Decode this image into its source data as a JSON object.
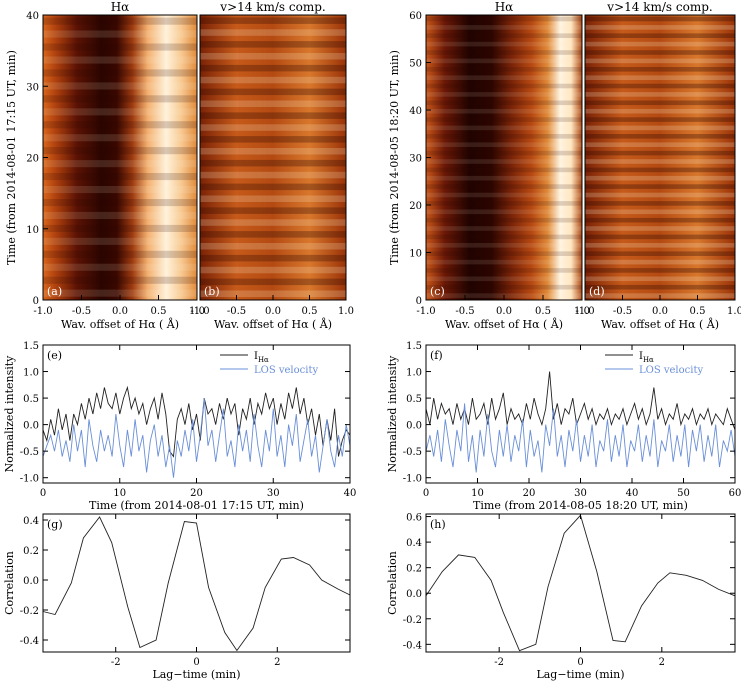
{
  "colors": {
    "axis": "#000000",
    "intensity_line": "#222222",
    "velocity_line": "#6a8fd8",
    "map_dark": "#1a0400",
    "map_mid": "#b54a12",
    "map_light": "#fff6e8"
  },
  "panels_a_to_d": [
    {
      "id": "a",
      "label": "(a)",
      "title": "Hα",
      "xlabel": "Wav. offset of Hα ( Å)",
      "ylabel": "Time (from 2014-08-01 17:15 UT, min)",
      "xticks": [
        "-1.0",
        "-0.5",
        "0.0",
        "0.5",
        "1.0"
      ],
      "yticks": [
        "0",
        "10",
        "20",
        "30",
        "40"
      ],
      "type": "spectral-time map"
    },
    {
      "id": "b",
      "label": "(b)",
      "title": "v>14 km/s comp.",
      "xlabel": "Wav. offset of Hα ( Å)",
      "xticks": [
        "-1.0",
        "-0.5",
        "0.0",
        "0.5",
        "1.0"
      ],
      "type": "spectral-time map"
    },
    {
      "id": "c",
      "label": "(c)",
      "title": "Hα",
      "xlabel": "Wav. offset of Hα ( Å)",
      "ylabel": "Time (from 2014-08-05 18:20 UT, min)",
      "xticks": [
        "-1.0",
        "-0.5",
        "0.0",
        "0.5",
        "1.0"
      ],
      "yticks": [
        "0",
        "10",
        "20",
        "30",
        "40",
        "50",
        "60"
      ],
      "type": "spectral-time map"
    },
    {
      "id": "d",
      "label": "(d)",
      "title": "v>14 km/s comp.",
      "xlabel": "Wav. offset of Hα ( Å)",
      "xticks": [
        "-1.0",
        "-0.5",
        "0.0",
        "0.5",
        "1.0"
      ],
      "type": "spectral-time map"
    }
  ],
  "chart_data": [
    {
      "id": "e",
      "label": "(e)",
      "type": "line",
      "xlabel": "Time (from 2014-08-01 17:15 UT, min)",
      "ylabel": "Normalized intensity",
      "xlim": [
        0,
        40
      ],
      "ylim": [
        -1.1,
        1.5
      ],
      "xticks": [
        "0",
        "10",
        "20",
        "30",
        "40"
      ],
      "yticks": [
        "-1.0",
        "-0.5",
        "0.0",
        "0.5",
        "1.0",
        "1.5"
      ],
      "legend": [
        "I",
        "LOS velocity"
      ],
      "legend_sub": "Hα",
      "legend_position": "top-right",
      "series": [
        {
          "name": "I_Hα",
          "x": [
            0,
            0.5,
            1,
            1.5,
            2,
            2.5,
            3,
            3.5,
            4,
            4.5,
            5,
            5.5,
            6,
            6.5,
            7,
            7.5,
            8,
            8.5,
            9,
            9.5,
            10,
            10.5,
            11,
            11.5,
            12,
            12.5,
            13,
            13.5,
            14,
            14.5,
            15,
            15.5,
            16,
            16.5,
            17,
            17.5,
            18,
            18.5,
            19,
            19.5,
            20,
            20.5,
            21,
            21.5,
            22,
            22.5,
            23,
            23.5,
            24,
            24.5,
            25,
            25.5,
            26,
            26.5,
            27,
            27.5,
            28,
            28.5,
            29,
            29.5,
            30,
            30.5,
            31,
            31.5,
            32,
            32.5,
            33,
            33.5,
            34,
            34.5,
            35,
            35.5,
            36,
            36.5,
            37,
            37.5,
            38,
            38.5,
            39,
            39.5,
            40
          ],
          "values": [
            -0.1,
            -0.3,
            0.1,
            -0.2,
            0.3,
            -0.1,
            0.2,
            -0.3,
            0.2,
            0.0,
            0.4,
            0.1,
            0.5,
            0.2,
            0.6,
            0.3,
            0.7,
            0.4,
            0.3,
            0.6,
            0.2,
            0.5,
            0.7,
            0.3,
            0.5,
            0.2,
            0.4,
            0.0,
            0.3,
            0.5,
            0.1,
            0.6,
            0.2,
            -0.5,
            -0.6,
            0.1,
            0.3,
            0.0,
            0.4,
            -0.1,
            0.2,
            -0.3,
            0.5,
            0.2,
            0.3,
            0.0,
            0.4,
            0.1,
            0.5,
            0.2,
            0.4,
            -0.2,
            0.3,
            0.1,
            0.5,
            0.0,
            0.4,
            0.2,
            0.6,
            0.3,
            0.5,
            0.0,
            0.4,
            0.1,
            0.6,
            0.3,
            0.7,
            0.2,
            0.5,
            0.0,
            0.3,
            -0.2,
            0.2,
            -0.4,
            0.1,
            -0.3,
            0.3,
            -0.6,
            -0.3,
            -0.1,
            -0.2
          ]
        },
        {
          "name": "LOS velocity",
          "x": [
            0,
            0.5,
            1,
            1.5,
            2,
            2.5,
            3,
            3.5,
            4,
            4.5,
            5,
            5.5,
            6,
            6.5,
            7,
            7.5,
            8,
            8.5,
            9,
            9.5,
            10,
            10.5,
            11,
            11.5,
            12,
            12.5,
            13,
            13.5,
            14,
            14.5,
            15,
            15.5,
            16,
            16.5,
            17,
            17.5,
            18,
            18.5,
            19,
            19.5,
            20,
            20.5,
            21,
            21.5,
            22,
            22.5,
            23,
            23.5,
            24,
            24.5,
            25,
            25.5,
            26,
            26.5,
            27,
            27.5,
            28,
            28.5,
            29,
            29.5,
            30,
            30.5,
            31,
            31.5,
            32,
            32.5,
            33,
            33.5,
            34,
            34.5,
            35,
            35.5,
            36,
            36.5,
            37,
            37.5,
            38,
            38.5,
            39,
            39.5,
            40
          ],
          "values": [
            -0.6,
            -0.4,
            -0.2,
            -0.5,
            -0.1,
            -0.6,
            -0.3,
            -0.7,
            0.0,
            -0.5,
            -0.1,
            -0.8,
            0.1,
            -0.4,
            -0.7,
            -0.1,
            -0.5,
            -0.2,
            -0.6,
            0.2,
            -0.4,
            -0.8,
            -0.1,
            -0.6,
            0.1,
            -0.5,
            -0.2,
            -0.9,
            -0.3,
            0.0,
            -0.6,
            -0.2,
            -0.8,
            -0.4,
            -1.0,
            -0.3,
            -0.6,
            -0.1,
            -0.5,
            0.1,
            -0.7,
            -0.2,
            0.5,
            -0.4,
            -0.1,
            -0.7,
            -0.2,
            0.3,
            -0.6,
            -0.3,
            -0.8,
            0.0,
            -0.5,
            -0.1,
            -0.7,
            0.2,
            -0.4,
            -0.8,
            -0.1,
            -0.5,
            0.3,
            -0.6,
            -0.2,
            -0.8,
            0.0,
            -0.4,
            0.2,
            -0.7,
            -0.3,
            0.1,
            -0.6,
            -0.2,
            -0.9,
            -0.4,
            0.1,
            -0.5,
            -0.8,
            -0.2,
            -0.6,
            0.0,
            -0.4
          ]
        }
      ]
    },
    {
      "id": "f",
      "label": "(f)",
      "type": "line",
      "xlabel": "Time (from 2014-08-05 18:20 UT, min)",
      "ylabel": "Normalized intensity",
      "xlim": [
        0,
        60
      ],
      "ylim": [
        -1.1,
        1.5
      ],
      "xticks": [
        "0",
        "10",
        "20",
        "30",
        "40",
        "50",
        "60"
      ],
      "yticks": [
        "-1.0",
        "-0.5",
        "0.0",
        "0.5",
        "1.0",
        "1.5"
      ],
      "legend": [
        "I",
        "LOS velocity"
      ],
      "legend_sub": "Hα",
      "legend_position": "top-right",
      "series": [
        {
          "name": "I_Hα",
          "x": [
            0,
            0.75,
            1.5,
            2.25,
            3,
            3.75,
            4.5,
            5.25,
            6,
            6.75,
            7.5,
            8.25,
            9,
            9.75,
            10.5,
            11.25,
            12,
            12.75,
            13.5,
            14.25,
            15,
            15.75,
            16.5,
            17.25,
            18,
            18.75,
            19.5,
            20.25,
            21,
            21.75,
            22.5,
            23.25,
            24,
            24.75,
            25.5,
            26.25,
            27,
            27.75,
            28.5,
            29.25,
            30,
            30.75,
            31.5,
            32.25,
            33,
            33.75,
            34.5,
            35.25,
            36,
            36.75,
            37.5,
            38.25,
            39,
            39.75,
            40.5,
            41.25,
            42,
            42.75,
            43.5,
            44.25,
            45,
            45.75,
            46.5,
            47.25,
            48,
            48.75,
            49.5,
            50.25,
            51,
            51.75,
            52.5,
            53.25,
            54,
            54.75,
            55.5,
            56.25,
            57,
            57.75,
            58.5,
            59.25,
            60
          ],
          "values": [
            0.3,
            0.0,
            0.5,
            0.1,
            0.4,
            0.2,
            0.3,
            0.0,
            0.4,
            0.1,
            0.3,
            0.0,
            0.5,
            0.1,
            0.2,
            0.4,
            0.0,
            0.5,
            0.1,
            0.3,
            0.6,
            0.0,
            0.3,
            0.1,
            0.2,
            0.0,
            0.4,
            0.1,
            0.5,
            0.2,
            0.0,
            0.3,
            1.0,
            0.1,
            0.4,
            0.0,
            0.3,
            0.2,
            0.5,
            0.0,
            0.2,
            0.4,
            0.1,
            0.3,
            0.0,
            0.2,
            0.1,
            0.3,
            0.0,
            0.2,
            0.1,
            0.3,
            0.0,
            0.2,
            0.4,
            0.1,
            0.3,
            0.0,
            0.2,
            0.7,
            0.1,
            0.3,
            0.0,
            0.2,
            0.1,
            0.4,
            0.0,
            0.2,
            0.1,
            0.3,
            0.0,
            0.2,
            0.1,
            0.3,
            0.0,
            0.2,
            0.1,
            0.0,
            0.3,
            0.1,
            -0.1
          ]
        },
        {
          "name": "LOS velocity",
          "x": [
            0,
            0.75,
            1.5,
            2.25,
            3,
            3.75,
            4.5,
            5.25,
            6,
            6.75,
            7.5,
            8.25,
            9,
            9.75,
            10.5,
            11.25,
            12,
            12.75,
            13.5,
            14.25,
            15,
            15.75,
            16.5,
            17.25,
            18,
            18.75,
            19.5,
            20.25,
            21,
            21.75,
            22.5,
            23.25,
            24,
            24.75,
            25.5,
            26.25,
            27,
            27.75,
            28.5,
            29.25,
            30,
            30.75,
            31.5,
            32.25,
            33,
            33.75,
            34.5,
            35.25,
            36,
            36.75,
            37.5,
            38.25,
            39,
            39.75,
            40.5,
            41.25,
            42,
            42.75,
            43.5,
            44.25,
            45,
            45.75,
            46.5,
            47.25,
            48,
            48.75,
            49.5,
            50.25,
            51,
            51.75,
            52.5,
            53.25,
            54,
            54.75,
            55.5,
            56.25,
            57,
            57.75,
            58.5,
            59.25,
            60
          ],
          "values": [
            -0.5,
            -0.2,
            -0.6,
            -0.1,
            -0.7,
            0.1,
            -0.4,
            -0.8,
            -0.1,
            -0.5,
            0.4,
            -0.7,
            -0.2,
            -0.9,
            -0.1,
            -0.6,
            0.2,
            -0.5,
            -0.8,
            -0.1,
            -0.6,
            0.0,
            -0.7,
            -0.2,
            -0.5,
            0.1,
            -0.8,
            -0.1,
            -0.6,
            -0.3,
            -0.9,
            0.0,
            -0.4,
            0.3,
            -0.6,
            -0.2,
            -0.8,
            -0.1,
            -0.5,
            0.1,
            -0.7,
            -0.2,
            -0.6,
            0.0,
            -0.8,
            -0.3,
            -0.5,
            0.1,
            -0.7,
            -0.2,
            -0.6,
            0.0,
            -0.8,
            -0.3,
            -0.5,
            0.0,
            -0.7,
            -0.2,
            -0.6,
            0.1,
            -0.8,
            -0.3,
            -0.5,
            0.0,
            -0.7,
            -0.2,
            -0.6,
            0.0,
            -0.8,
            -0.1,
            -0.5,
            0.0,
            -0.7,
            -0.2,
            -0.6,
            0.0,
            -0.8,
            -0.3,
            -0.5,
            -0.1,
            -0.6
          ]
        }
      ]
    },
    {
      "id": "g",
      "label": "(g)",
      "type": "line",
      "xlabel": "Lag−time (min)",
      "ylabel": "Correlation",
      "xlim": [
        -3.8,
        3.8
      ],
      "ylim": [
        -0.48,
        0.44
      ],
      "xticks": [
        "-2",
        "0",
        "2"
      ],
      "yticks": [
        "-0.4",
        "-0.2",
        "0.0",
        "0.2",
        "0.4"
      ],
      "series": [
        {
          "name": "Correlation",
          "x": [
            -3.8,
            -3.5,
            -3.1,
            -2.8,
            -2.4,
            -2.1,
            -1.7,
            -1.4,
            -1.0,
            -0.7,
            -0.3,
            0.0,
            0.3,
            0.7,
            1.0,
            1.4,
            1.7,
            2.1,
            2.4,
            2.8,
            3.1,
            3.5,
            3.8
          ],
          "values": [
            -0.21,
            -0.23,
            -0.02,
            0.28,
            0.42,
            0.25,
            -0.18,
            -0.45,
            -0.4,
            -0.02,
            0.39,
            0.38,
            -0.05,
            -0.35,
            -0.47,
            -0.32,
            -0.05,
            0.14,
            0.15,
            0.1,
            0.0,
            -0.06,
            -0.1
          ]
        }
      ]
    },
    {
      "id": "h",
      "label": "(h)",
      "type": "line",
      "xlabel": "Lag−time (min)",
      "ylabel": "Correlation",
      "xlim": [
        -3.8,
        3.8
      ],
      "ylim": [
        -0.46,
        0.62
      ],
      "xticks": [
        "-2",
        "0",
        "2"
      ],
      "yticks": [
        "-0.4",
        "-0.2",
        "0.0",
        "0.2",
        "0.4",
        "0.6"
      ],
      "series": [
        {
          "name": "Correlation",
          "x": [
            -3.8,
            -3.4,
            -3.0,
            -2.6,
            -2.2,
            -1.9,
            -1.5,
            -1.1,
            -0.8,
            -0.4,
            0.0,
            0.4,
            0.8,
            1.1,
            1.5,
            1.9,
            2.2,
            2.6,
            3.0,
            3.4,
            3.8
          ],
          "values": [
            -0.02,
            0.17,
            0.3,
            0.28,
            0.1,
            -0.15,
            -0.45,
            -0.4,
            0.05,
            0.47,
            0.61,
            0.17,
            -0.37,
            -0.38,
            -0.1,
            0.08,
            0.16,
            0.14,
            0.1,
            0.03,
            -0.02
          ]
        }
      ]
    }
  ]
}
